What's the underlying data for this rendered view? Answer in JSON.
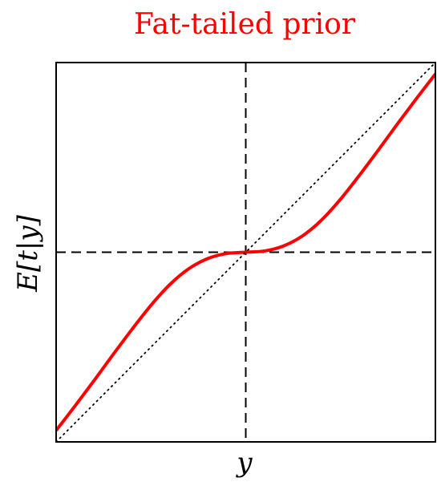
{
  "chart_data": {
    "type": "line",
    "title": "Fat-tailed prior",
    "xlabel": "y",
    "ylabel": "E[t|y]",
    "xlim": [
      -3,
      3
    ],
    "ylim": [
      -3,
      3
    ],
    "grid": false,
    "legend": "none",
    "colors": {
      "title": "#ff0000",
      "curve": "#ff0000",
      "reference": "#000000"
    },
    "series": [
      {
        "style": "solid",
        "x": [
          -3.0,
          -2.7,
          -2.4,
          -2.1,
          -1.8,
          -1.5,
          -1.2,
          -0.9,
          -0.6,
          -0.3,
          0.0,
          0.3,
          0.6,
          0.9,
          1.2,
          1.5,
          1.8,
          2.1,
          2.4,
          2.7,
          3.0
        ],
        "y": [
          -2.82,
          -2.43,
          -2.03,
          -1.62,
          -1.22,
          -0.84,
          -0.51,
          -0.26,
          -0.1,
          -0.02,
          0.0,
          0.02,
          0.1,
          0.26,
          0.51,
          0.84,
          1.22,
          1.62,
          2.03,
          2.43,
          2.82
        ]
      },
      {
        "style": "dotted",
        "x": [
          -3.0,
          3.0
        ],
        "y": [
          -3.0,
          3.0
        ]
      }
    ],
    "reference_lines": [
      {
        "orientation": "vertical",
        "value": 0,
        "style": "dashed"
      },
      {
        "orientation": "horizontal",
        "value": 0,
        "style": "dashed"
      }
    ]
  }
}
